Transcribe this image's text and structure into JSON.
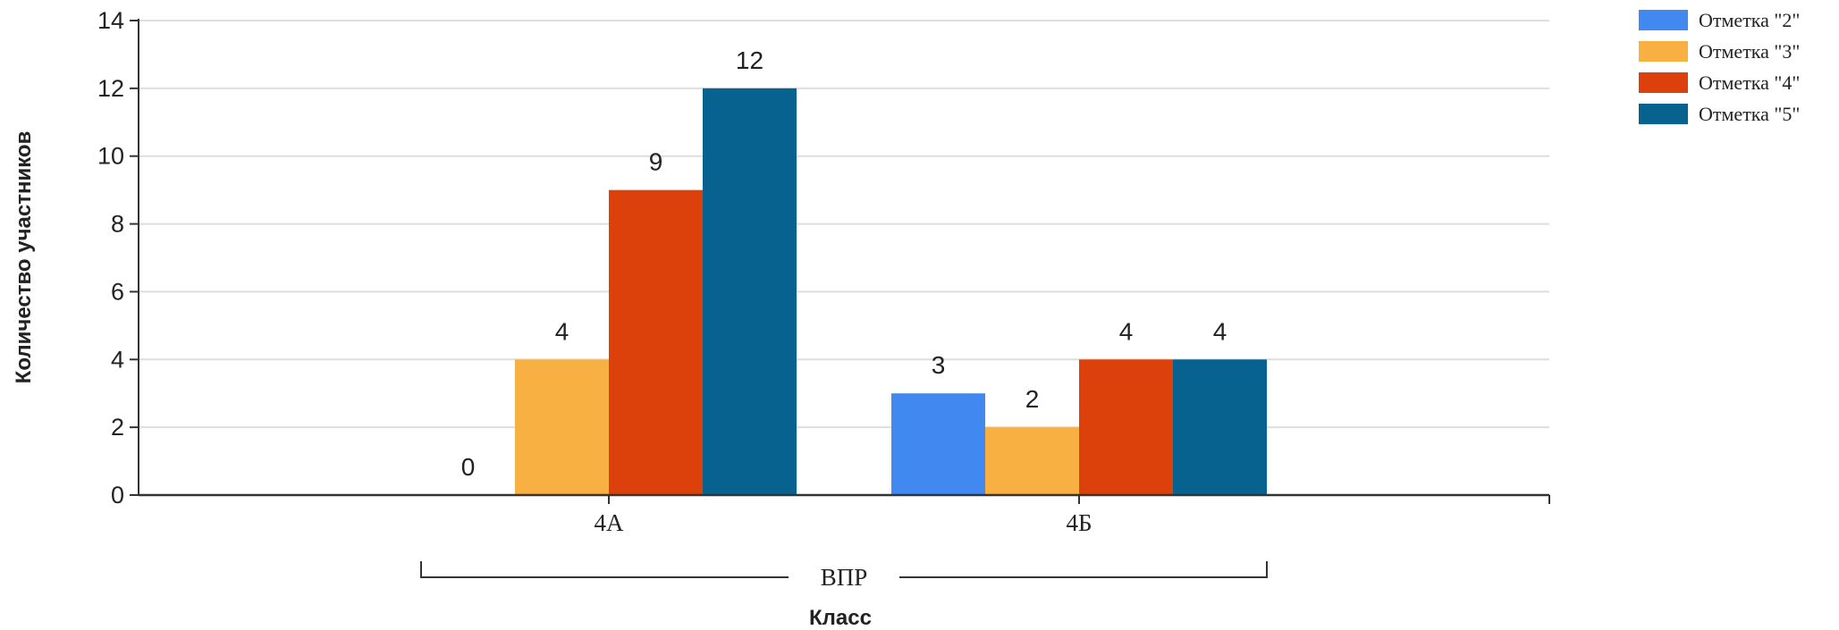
{
  "chart_data": {
    "type": "bar",
    "categories": [
      "4А",
      "4Б"
    ],
    "group_label": "ВПР",
    "series": [
      {
        "name": "Отметка \"2\"",
        "values": [
          0,
          3
        ],
        "color": "#4189f0"
      },
      {
        "name": "Отметка \"3\"",
        "values": [
          4,
          2
        ],
        "color": "#f9b042"
      },
      {
        "name": "Отметка \"4\"",
        "values": [
          9,
          4
        ],
        "color": "#dd410b"
      },
      {
        "name": "Отметка \"5\"",
        "values": [
          12,
          4
        ],
        "color": "#076290"
      }
    ],
    "xlabel": "Класс",
    "ylabel": "Количество участников",
    "ylim": [
      0,
      14
    ],
    "yticks": [
      0,
      2,
      4,
      6,
      8,
      10,
      12,
      14
    ],
    "grid": true,
    "legend_position": "top-right"
  }
}
